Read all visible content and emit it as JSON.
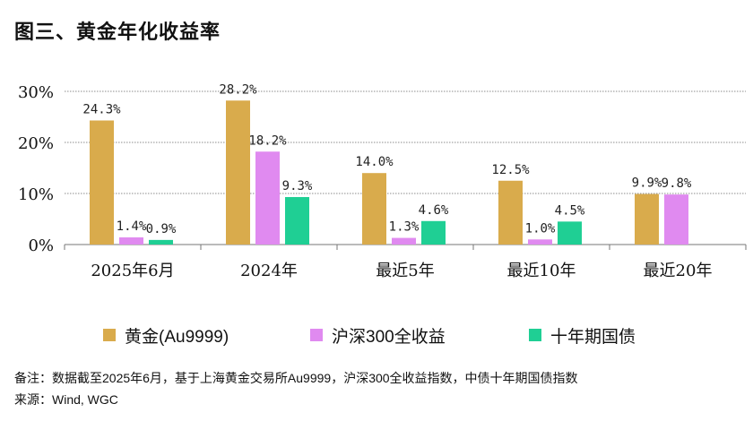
{
  "title": "图三、黄金年化收益率",
  "chart_data": {
    "type": "bar",
    "categories": [
      "2025年6月",
      "2024年",
      "最近5年",
      "最近10年",
      "最近20年"
    ],
    "series": [
      {
        "name": "黄金(Au9999)",
        "color": "#d9ab4c",
        "values": [
          24.3,
          28.2,
          14.0,
          12.5,
          9.9
        ],
        "labels": [
          "24.3%",
          "28.2%",
          "14.0%",
          "12.5%",
          "9.9%"
        ]
      },
      {
        "name": "沪深300全收益",
        "color": "#e08af0",
        "values": [
          1.4,
          18.2,
          1.3,
          1.0,
          9.8
        ],
        "labels": [
          "1.4%",
          "18.2%",
          "1.3%",
          "1.0%",
          "9.8%"
        ]
      },
      {
        "name": "十年期国债",
        "color": "#1fcf94",
        "values": [
          0.9,
          9.3,
          4.6,
          4.5,
          null
        ],
        "labels": [
          "0.9%",
          "9.3%",
          "4.6%",
          "4.5%",
          null
        ]
      }
    ],
    "yticks": [
      "0%",
      "10%",
      "20%",
      "30%"
    ],
    "ytick_values": [
      0,
      10,
      20,
      30
    ],
    "ylim": [
      0,
      30
    ],
    "grid": true,
    "legend_position": "bottom"
  },
  "notes": {
    "remark": "备注：数据截至2025年6月，基于上海黄金交易所Au9999，沪深300全收益指数，中债十年期国债指数",
    "source": "来源：Wind, WGC"
  }
}
